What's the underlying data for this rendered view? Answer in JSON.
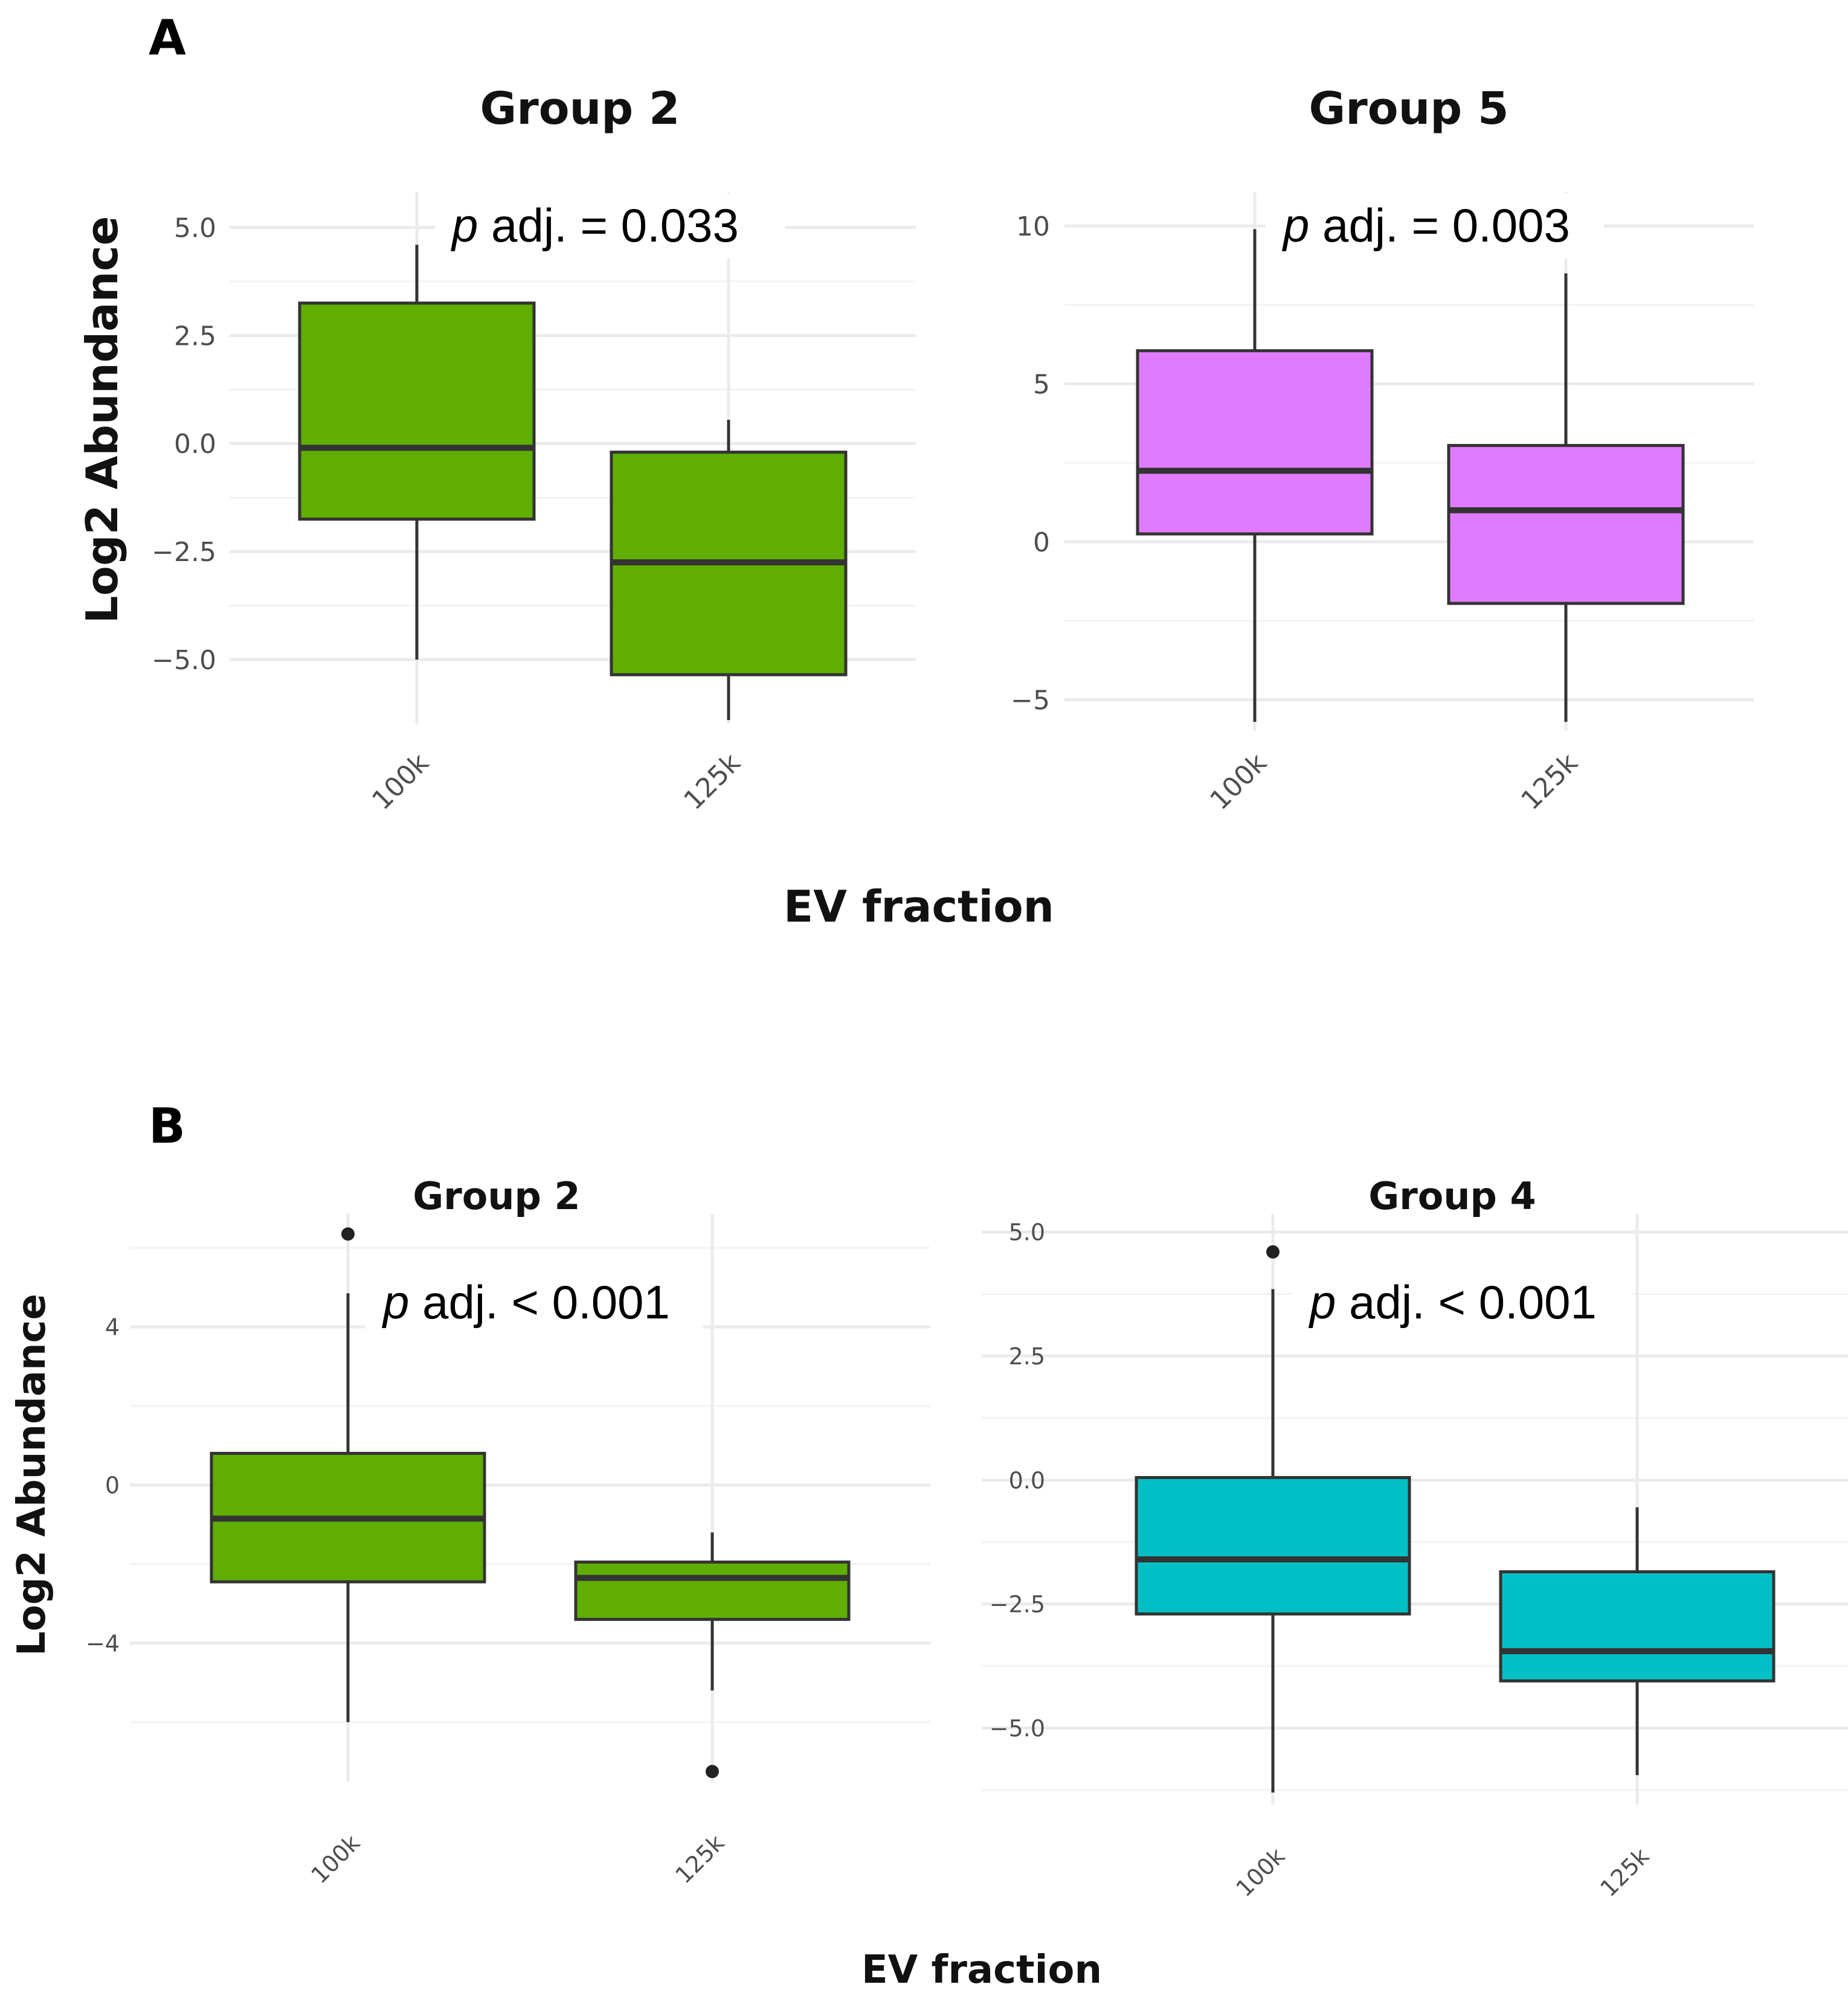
{
  "figure": {
    "panel_labels": [
      "A",
      "B"
    ],
    "x_axis_title_A": "EV fraction",
    "x_axis_title_B": "EV fraction",
    "y_axis_title_A": "Log2 Abundance",
    "y_axis_title_B": "Log2 Abundance"
  },
  "chart_data": [
    {
      "type": "box",
      "panel": "A",
      "title": "Group 2",
      "xlabel": "EV fraction",
      "ylabel": "Log2 Abundance",
      "categories": [
        "100k",
        "125k"
      ],
      "ylim": [
        -6.2,
        5.4
      ],
      "yticks": [
        5.0,
        2.5,
        0.0,
        -2.5,
        -5.0
      ],
      "ytick_labels": [
        "5.0",
        "2.5",
        "0.0",
        "−2.5",
        "−5.0"
      ],
      "boxes": [
        {
          "lower_whisker": -5.0,
          "q1": -1.75,
          "median": -0.1,
          "q3": 3.25,
          "upper_whisker": 4.6,
          "outliers": []
        },
        {
          "lower_whisker": -6.4,
          "q1": -5.35,
          "median": -2.75,
          "q3": -0.2,
          "upper_whisker": 0.55,
          "outliers": []
        }
      ],
      "color": "#5fae00",
      "annotation": {
        "italic": "p",
        "text": " adj. = 0.033"
      }
    },
    {
      "type": "box",
      "panel": "A",
      "title": "Group 5",
      "xlabel": "EV fraction",
      "ylabel": "Log2 Abundance",
      "categories": [
        "100k",
        "125k"
      ],
      "ylim": [
        -5.6,
        10.5
      ],
      "yticks": [
        10,
        5,
        0,
        -5
      ],
      "ytick_labels": [
        "10",
        "5",
        "0",
        "−5"
      ],
      "boxes": [
        {
          "lower_whisker": -5.7,
          "q1": 0.25,
          "median": 2.25,
          "q3": 6.05,
          "upper_whisker": 9.9,
          "outliers": []
        },
        {
          "lower_whisker": -5.7,
          "q1": -1.95,
          "median": 1.0,
          "q3": 3.05,
          "upper_whisker": 8.5,
          "outliers": []
        }
      ],
      "color": "#e07bff",
      "annotation": {
        "italic": "p",
        "text": " adj. = 0.003"
      }
    },
    {
      "type": "box",
      "panel": "B",
      "title": "Group 2",
      "xlabel": "EV fraction",
      "ylabel": "Log2 Abundance",
      "categories": [
        "100k",
        "125k"
      ],
      "ylim": [
        -7.2,
        6.4
      ],
      "yticks": [
        4,
        0,
        -4
      ],
      "ytick_labels": [
        "4",
        "0",
        "−4"
      ],
      "boxes": [
        {
          "lower_whisker": -6.0,
          "q1": -2.45,
          "median": -0.85,
          "q3": 0.8,
          "upper_whisker": 4.85,
          "outliers": [
            6.35
          ]
        },
        {
          "lower_whisker": -5.2,
          "q1": -3.4,
          "median": -2.35,
          "q3": -1.95,
          "upper_whisker": -1.2,
          "outliers": [
            -7.25
          ]
        }
      ],
      "color": "#5fae00",
      "annotation": {
        "italic": "p",
        "text": " adj. < 0.001"
      }
    },
    {
      "type": "box",
      "panel": "B",
      "title": "Group 4",
      "xlabel": "EV fraction",
      "ylabel": "Log2 Abundance",
      "categories": [
        "100k",
        "125k"
      ],
      "ylim": [
        -6.3,
        5.0
      ],
      "yticks": [
        5.0,
        2.5,
        0.0,
        -2.5,
        -5.0
      ],
      "ytick_labels": [
        "5.0",
        "2.5",
        "0.0",
        "−2.5",
        "−5.0"
      ],
      "boxes": [
        {
          "lower_whisker": -6.3,
          "q1": -2.7,
          "median": -1.6,
          "q3": 0.05,
          "upper_whisker": 3.85,
          "outliers": [
            4.6
          ]
        },
        {
          "lower_whisker": -5.95,
          "q1": -4.05,
          "median": -3.45,
          "q3": -1.85,
          "upper_whisker": -0.55,
          "outliers": []
        }
      ],
      "color": "#00c0c6",
      "annotation": {
        "italic": "p",
        "text": " adj. < 0.001"
      }
    }
  ]
}
